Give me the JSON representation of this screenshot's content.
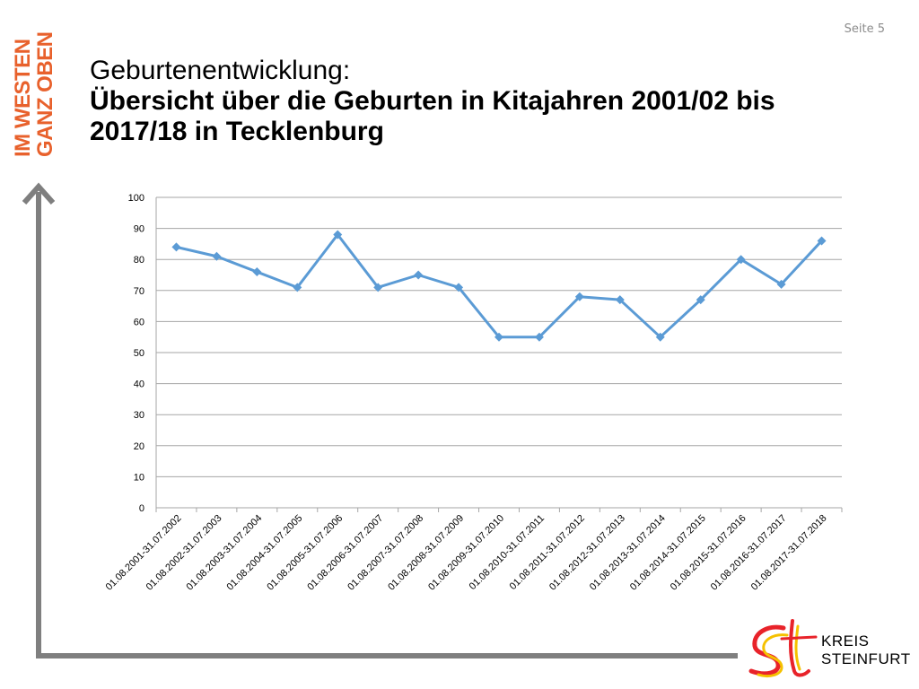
{
  "page": {
    "number_label": "Seite 5",
    "slogan": [
      "IM WESTEN",
      "GANZ OBEN"
    ],
    "title_line1": "Geburtenentwicklung:",
    "title_line2": "Übersicht über die Geburten in Kitajahren 2001/02 bis 2017/18 in Tecklenburg"
  },
  "logo": {
    "line1": "KREIS",
    "line2": "STEINFURT"
  },
  "colors": {
    "accent": "#e8612c",
    "series": "#5b9bd5",
    "frame": "#7f7f7f",
    "grid": "#a6a6a6"
  },
  "chart_data": {
    "type": "line",
    "title": "",
    "xlabel": "",
    "ylabel": "",
    "ylim": [
      0,
      100
    ],
    "yticks": [
      0,
      10,
      20,
      30,
      40,
      50,
      60,
      70,
      80,
      90,
      100
    ],
    "grid": true,
    "legend": "none",
    "categories": [
      "01.08.2001-31.07.2002",
      "01.08.2002-31.07.2003",
      "01.08.2003-31.07.2004",
      "01.08.2004-31.07.2005",
      "01.08.2005-31.07.2006",
      "01.08.2006-31.07.2007",
      "01.08.2007-31.07.2008",
      "01.08.2008-31.07.2009",
      "01.08.2009-31.07.2010",
      "01.08.2010-31.07.2011",
      "01.08.2011-31.07.2012",
      "01.08.2012-31.07.2013",
      "01.08.2013-31.07.2014",
      "01.08.2014-31.07.2015",
      "01.08.2015-31.07.2016",
      "01.08.2016-31.07.2017",
      "01.08.2017-31.07.2018"
    ],
    "series": [
      {
        "values": [
          84,
          81,
          76,
          71,
          88,
          71,
          75,
          71,
          55,
          55,
          68,
          67,
          55,
          67,
          80,
          72,
          86
        ]
      }
    ]
  }
}
